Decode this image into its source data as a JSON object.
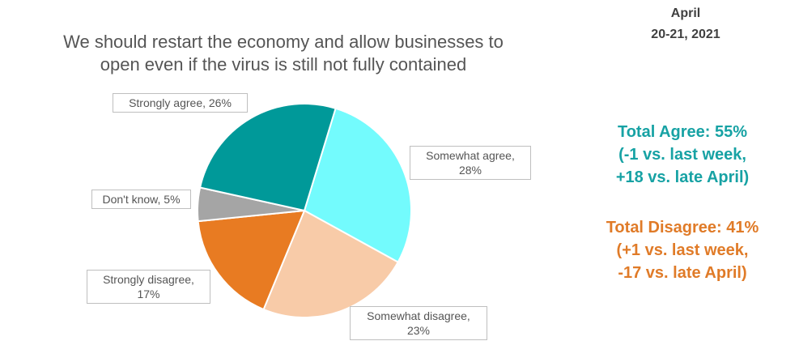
{
  "chart_data": {
    "type": "pie",
    "title": [
      "We should restart the economy and allow businesses to",
      "open even if the virus is still not fully contained"
    ],
    "values": [
      28,
      23,
      17,
      5,
      26
    ],
    "value_labels": [
      "Somewhat agree, 28%",
      "Somewhat disagree, 23%",
      "Strongly disagree, 17%",
      "Don't know, 5%",
      "Strongly agree, 26%"
    ],
    "colors": [
      "#73fbfd",
      "#f8cba8",
      "#e87b22",
      "#a5a5a5",
      "#009999"
    ],
    "date": [
      "April",
      "20-21, 2021"
    ],
    "annotations": [
      {
        "color": "#17a2a4",
        "lines": [
          "Total Agree: 55%",
          "(-1 vs. last week,",
          "+18 vs. late April)"
        ]
      },
      {
        "color": "#e07b28",
        "lines": [
          "Total Disagree: 41%",
          "(+1 vs. last week,",
          "-17 vs. late April)"
        ]
      }
    ]
  }
}
